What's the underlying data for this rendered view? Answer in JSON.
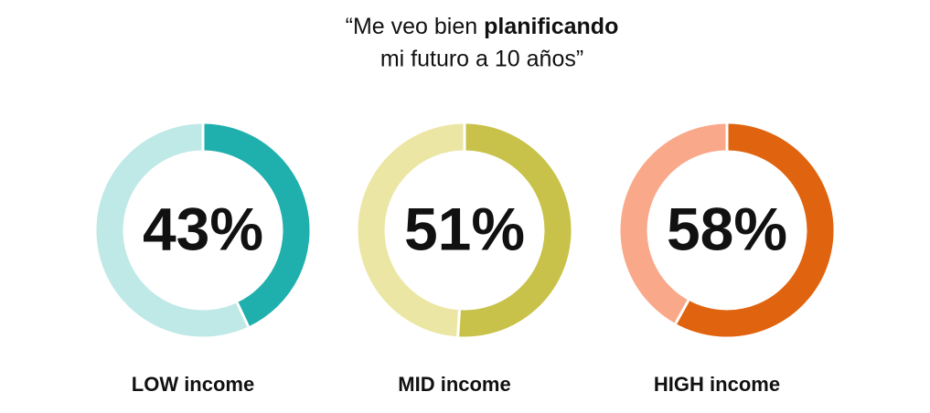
{
  "title": {
    "line1_start": "“Me veo bien",
    "line1_bold": "planificando",
    "line2": "mi futuro a 10 años”"
  },
  "chart_data": [
    {
      "type": "donut",
      "title": "LOW income",
      "values": [
        43
      ],
      "value_labels": [
        "43%"
      ],
      "color": "#1fb0ad",
      "track_color": "#bfe9e6"
    },
    {
      "type": "donut",
      "title": "MID income",
      "values": [
        51
      ],
      "value_labels": [
        "51%"
      ],
      "color": "#c8c24a",
      "track_color": "#ece6a4"
    },
    {
      "type": "donut",
      "title": "HIGH income",
      "values": [
        58
      ],
      "value_labels": [
        "58%"
      ],
      "color": "#e0640f",
      "track_color": "#f9a98a"
    }
  ]
}
